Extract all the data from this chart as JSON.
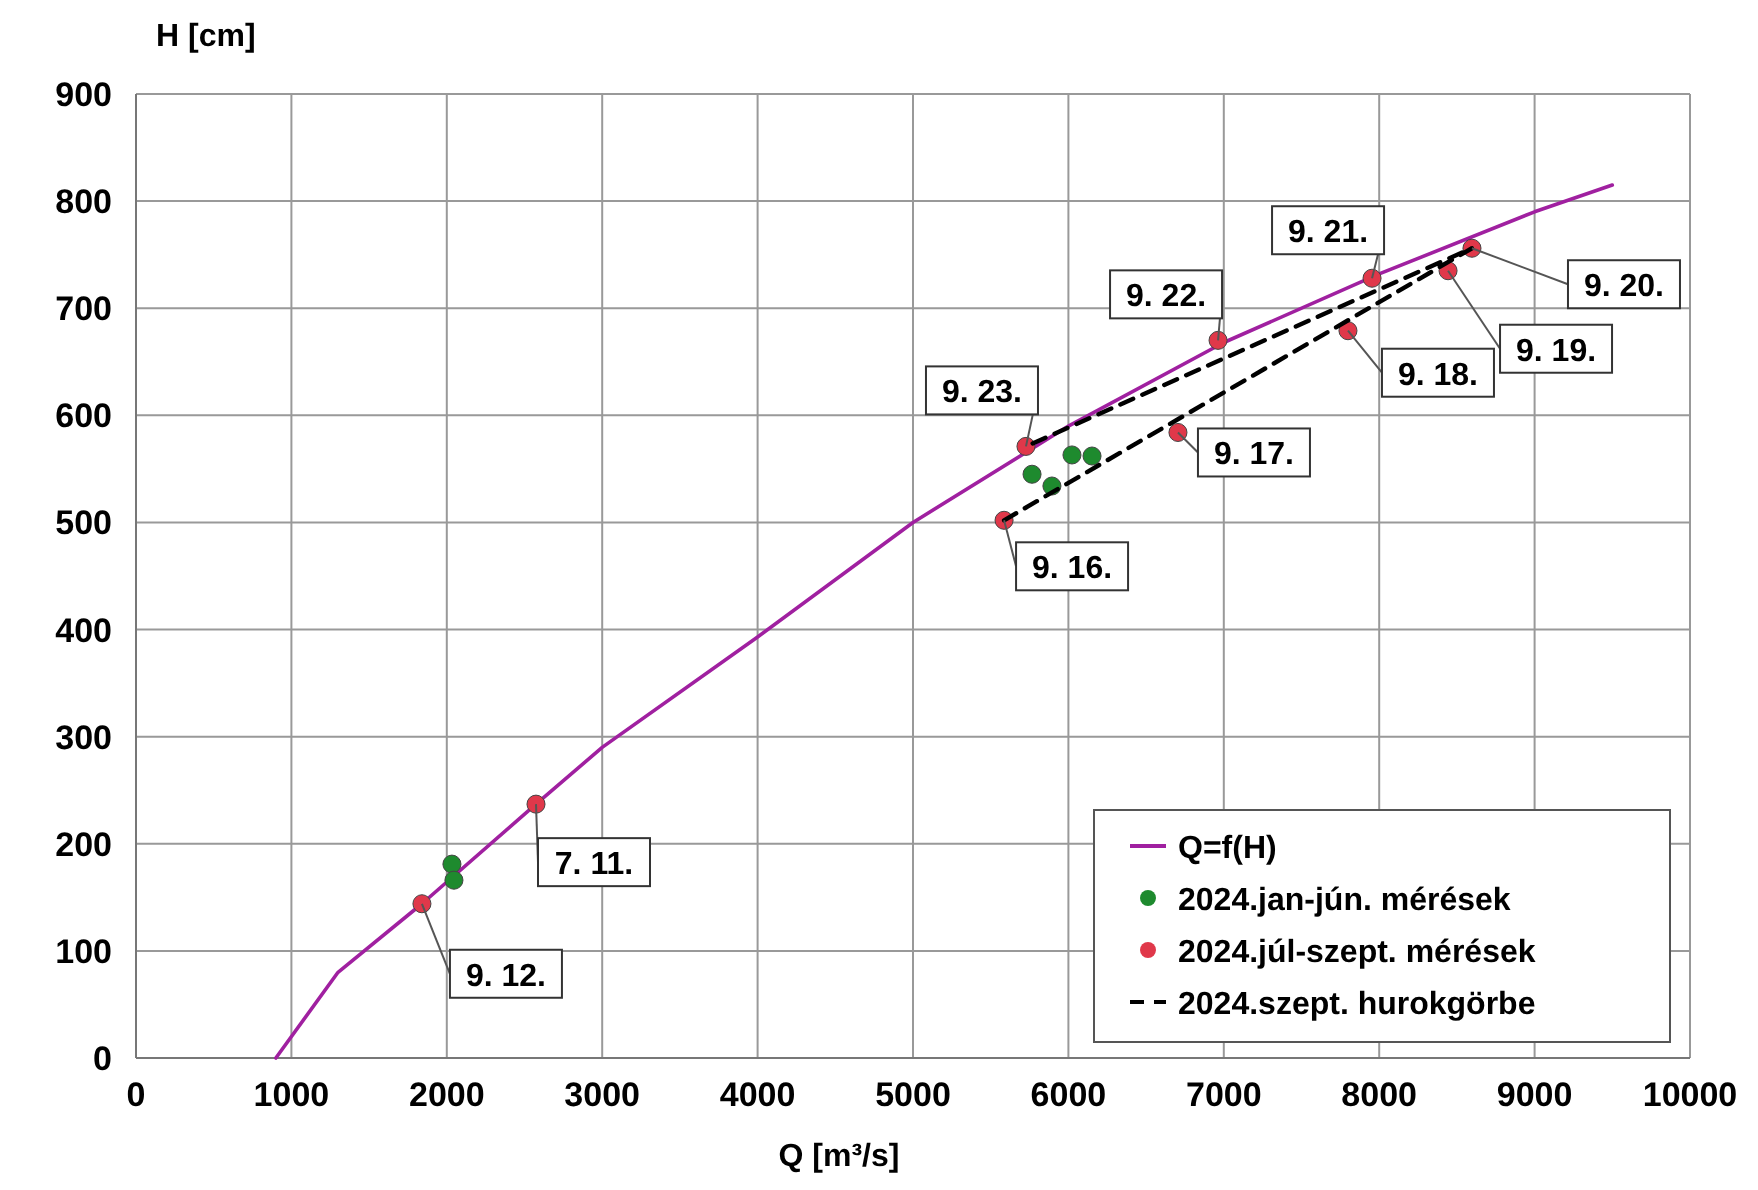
{
  "chart_data": {
    "type": "scatter",
    "xlabel": "Q [m³/s]",
    "ylabel": "H [cm]",
    "xlim": [
      0,
      10000
    ],
    "xticks": [
      0,
      1000,
      2000,
      3000,
      4000,
      5000,
      6000,
      7000,
      8000,
      9000,
      10000
    ],
    "ylim": [
      0,
      900
    ],
    "yticks": [
      0,
      100,
      200,
      300,
      400,
      500,
      600,
      700,
      800,
      900
    ],
    "grid": true,
    "legend": "bottom right",
    "series": [
      {
        "name": "Q=f(H)",
        "type": "line",
        "color": "#a020a0",
        "line_style": "solid",
        "x": [
          900,
          1300,
          1840,
          2574,
          3000,
          4000,
          5000,
          6000,
          7000,
          8000,
          9000,
          9500
        ],
        "values": [
          0,
          80,
          144,
          237,
          290,
          393,
          500,
          590,
          668,
          732,
          790,
          815
        ]
      },
      {
        "name": "2024.jan-jún. mérések",
        "color": "#1e8a2e",
        "marker": "circle",
        "x": [
          2033,
          2046,
          5766,
          5894,
          6023,
          6152
        ],
        "values": [
          181,
          166,
          545,
          534,
          563,
          562
        ]
      },
      {
        "name": "2024.júl-szept. mérések",
        "color": "#e0384a",
        "marker": "circle",
        "x": [
          1840,
          2574,
          5586,
          5727,
          6705,
          6963,
          7799,
          7954,
          8443,
          8597
        ],
        "values": [
          144,
          237,
          502,
          571,
          584,
          670,
          679,
          728,
          735,
          756
        ]
      },
      {
        "name": "2024.szept. hurokgörbe",
        "type": "line",
        "color": "#000000",
        "line_style": "dashed",
        "x": [
          5586,
          8597,
          5727
        ],
        "values": [
          502,
          756,
          571
        ]
      }
    ],
    "annotations": [
      {
        "text": "9. 12.",
        "x": 1840,
        "y": 144
      },
      {
        "text": "7. 11.",
        "x": 2574,
        "y": 237
      },
      {
        "text": "9. 16.",
        "x": 5586,
        "y": 502
      },
      {
        "text": "9. 23.",
        "x": 5727,
        "y": 571
      },
      {
        "text": "9. 17.",
        "x": 6705,
        "y": 584
      },
      {
        "text": "9. 22.",
        "x": 6963,
        "y": 670
      },
      {
        "text": "9. 18.",
        "x": 7799,
        "y": 679
      },
      {
        "text": "9. 21.",
        "x": 7954,
        "y": 728
      },
      {
        "text": "9. 19.",
        "x": 8443,
        "y": 735
      },
      {
        "text": "9. 20.",
        "x": 8597,
        "y": 756
      }
    ]
  }
}
